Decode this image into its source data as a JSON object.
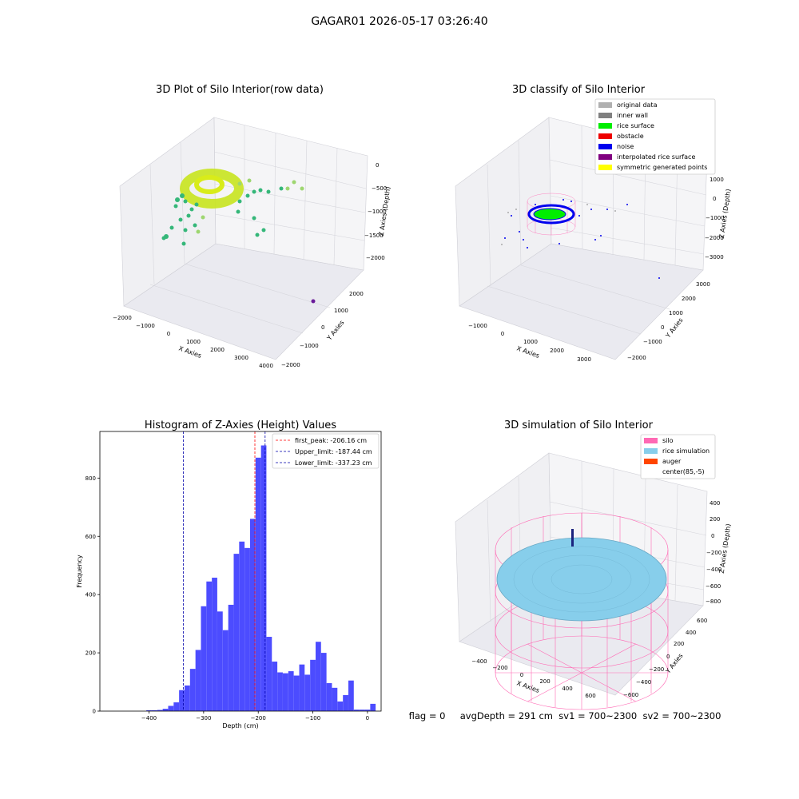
{
  "figure": {
    "suptitle": "GAGAR01 2026-05-17 03:26:40",
    "status_text": "flag = 0     avgDepth = 291 cm  sv1 = 700~2300  sv2 = 700~2300"
  },
  "panels": {
    "raw": {
      "title": "3D Plot of Silo Interior(row data)",
      "xlabel": "X Axies",
      "ylabel": "Y Axies",
      "zlabel": "Z Axies (Depth)",
      "xticks": [
        "−2000",
        "−1000",
        "0",
        "1000",
        "2000",
        "3000",
        "4000"
      ],
      "yticks": [
        "−2000",
        "−1000",
        "0",
        "1000",
        "2000"
      ],
      "zticks": [
        "0",
        "−500",
        "−1000",
        "−1500",
        "−2000"
      ]
    },
    "classify": {
      "title": "3D classify of Silo Interior",
      "xlabel": "X Axies",
      "ylabel": "Y Axies",
      "zlabel": "Z Axies (Depth)",
      "xticks": [
        "−1000",
        "0",
        "1000",
        "2000",
        "3000"
      ],
      "yticks": [
        "−2000",
        "−1000",
        "0",
        "1000",
        "2000",
        "3000"
      ],
      "zticks": [
        "1000",
        "0",
        "−1000",
        "−2000",
        "−3000"
      ],
      "legend": [
        {
          "label": "original data",
          "color": "#b0b0b0"
        },
        {
          "label": "inner wall",
          "color": "#808080"
        },
        {
          "label": "rice surface",
          "color": "#00ee00"
        },
        {
          "label": "obstacle",
          "color": "#ee0000"
        },
        {
          "label": "noise",
          "color": "#0000ee"
        },
        {
          "label": "interpolated rice surface",
          "color": "#800080"
        },
        {
          "label": "symmetric generated points",
          "color": "#ffff00"
        }
      ]
    },
    "simulation": {
      "title": "3D simulation of Silo Interior",
      "xlabel": "X Axies",
      "ylabel": "Y Axies",
      "zlabel": "Z Axies (Depth)",
      "xticks": [
        "−400",
        "−200",
        "0",
        "200",
        "400",
        "600"
      ],
      "yticks": [
        "−600",
        "−400",
        "−200",
        "0",
        "200",
        "400",
        "600"
      ],
      "zticks": [
        "400",
        "200",
        "0",
        "−200",
        "−400",
        "−600",
        "−800"
      ],
      "legend": [
        {
          "label": "silo",
          "color": "#ff69b4"
        },
        {
          "label": "rice simulation",
          "color": "#87ceeb"
        },
        {
          "label": "auger",
          "color": "#ff4500"
        },
        {
          "label": "center(85,-5)",
          "color": null
        }
      ]
    }
  },
  "chart_data": {
    "type": "bar",
    "title": "Histogram of Z-Axies (Height) Values",
    "xlabel": "Depth (cm)",
    "ylabel": "Frequency",
    "xlim": [
      -490,
      25
    ],
    "ylim": [
      0,
      960
    ],
    "xticks": [
      -400,
      -300,
      -200,
      -100,
      0
    ],
    "yticks": [
      0,
      200,
      400,
      600,
      800
    ],
    "bin_width": 9.9,
    "bins": [
      {
        "x": -400,
        "v": 3
      },
      {
        "x": -390,
        "v": 3
      },
      {
        "x": -380,
        "v": 4
      },
      {
        "x": -370,
        "v": 8
      },
      {
        "x": -360,
        "v": 18
      },
      {
        "x": -350,
        "v": 30
      },
      {
        "x": -340,
        "v": 72
      },
      {
        "x": -330,
        "v": 88
      },
      {
        "x": -320,
        "v": 145
      },
      {
        "x": -310,
        "v": 210
      },
      {
        "x": -300,
        "v": 360
      },
      {
        "x": -290,
        "v": 445
      },
      {
        "x": -280,
        "v": 458
      },
      {
        "x": -270,
        "v": 342
      },
      {
        "x": -260,
        "v": 278
      },
      {
        "x": -250,
        "v": 365
      },
      {
        "x": -240,
        "v": 540
      },
      {
        "x": -230,
        "v": 582
      },
      {
        "x": -220,
        "v": 560
      },
      {
        "x": -210,
        "v": 660
      },
      {
        "x": -200,
        "v": 870
      },
      {
        "x": -190,
        "v": 912
      },
      {
        "x": -180,
        "v": 255
      },
      {
        "x": -170,
        "v": 170
      },
      {
        "x": -160,
        "v": 133
      },
      {
        "x": -150,
        "v": 130
      },
      {
        "x": -140,
        "v": 137
      },
      {
        "x": -130,
        "v": 122
      },
      {
        "x": -120,
        "v": 160
      },
      {
        "x": -110,
        "v": 125
      },
      {
        "x": -100,
        "v": 176
      },
      {
        "x": -90,
        "v": 238
      },
      {
        "x": -80,
        "v": 200
      },
      {
        "x": -70,
        "v": 96
      },
      {
        "x": -60,
        "v": 80
      },
      {
        "x": -50,
        "v": 33
      },
      {
        "x": -40,
        "v": 55
      },
      {
        "x": -30,
        "v": 105
      },
      {
        "x": -20,
        "v": 5
      },
      {
        "x": -10,
        "v": 5
      },
      {
        "x": 0,
        "v": 5
      },
      {
        "x": 10,
        "v": 25
      }
    ],
    "bar_color": "#0000ff",
    "vlines": [
      {
        "label": "first_peak: -206.16 cm",
        "x": -206.16,
        "color": "#ff0000"
      },
      {
        "label": "Upper_limit: -187.44 cm",
        "x": -187.44,
        "color": "#0000aa"
      },
      {
        "label": "Lower_limit: -337.23 cm",
        "x": -337.23,
        "color": "#0000aa"
      }
    ],
    "legend_position": "top-right"
  }
}
